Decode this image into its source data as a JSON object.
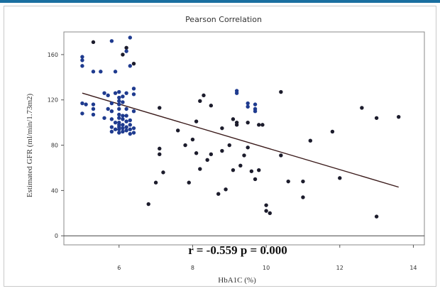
{
  "chart_data": {
    "type": "scatter",
    "title": "Pearson Correlation",
    "xlabel": "HbA1C (%)",
    "ylabel": "Estimated GFR (ml/min/1.73m2)",
    "xlim": [
      4.5,
      14.3
    ],
    "ylim": [
      -8,
      180
    ],
    "xticks": [
      6,
      8,
      10,
      12,
      14
    ],
    "yticks": [
      0,
      40,
      80,
      120,
      160
    ],
    "grid": false,
    "annotation": "r = -0.559  p = 0.000",
    "trendline": {
      "x": [
        5,
        13.6
      ],
      "y": [
        126,
        43
      ]
    },
    "colors": {
      "blue": "#1f3b8f",
      "black": "#1c1c2c",
      "trendline": "#3a1a1a"
    },
    "points_blue": [
      [
        5.0,
        158
      ],
      [
        5.0,
        155
      ],
      [
        5.0,
        150
      ],
      [
        5.0,
        117
      ],
      [
        5.0,
        108
      ],
      [
        5.1,
        116
      ],
      [
        5.3,
        145
      ],
      [
        5.3,
        116
      ],
      [
        5.3,
        112
      ],
      [
        5.3,
        107
      ],
      [
        5.5,
        145
      ],
      [
        5.6,
        126
      ],
      [
        5.6,
        104
      ],
      [
        5.7,
        124
      ],
      [
        5.7,
        112
      ],
      [
        5.8,
        172
      ],
      [
        5.8,
        117
      ],
      [
        5.8,
        110
      ],
      [
        5.8,
        103
      ],
      [
        5.8,
        96
      ],
      [
        5.8,
        92
      ],
      [
        5.9,
        100
      ],
      [
        5.9,
        94
      ],
      [
        5.9,
        145
      ],
      [
        5.9,
        126
      ],
      [
        6.0,
        127
      ],
      [
        6.0,
        122
      ],
      [
        6.0,
        119
      ],
      [
        6.0,
        116
      ],
      [
        6.0,
        112
      ],
      [
        6.0,
        107
      ],
      [
        6.0,
        104
      ],
      [
        6.0,
        100
      ],
      [
        6.0,
        98
      ],
      [
        6.0,
        96
      ],
      [
        6.0,
        94
      ],
      [
        6.0,
        91
      ],
      [
        6.1,
        123
      ],
      [
        6.1,
        118
      ],
      [
        6.1,
        106
      ],
      [
        6.1,
        103
      ],
      [
        6.1,
        98
      ],
      [
        6.1,
        95
      ],
      [
        6.1,
        92
      ],
      [
        6.2,
        112
      ],
      [
        6.2,
        106
      ],
      [
        6.2,
        101
      ],
      [
        6.2,
        96
      ],
      [
        6.2,
        93
      ],
      [
        6.3,
        102
      ],
      [
        6.3,
        98
      ],
      [
        6.3,
        94
      ],
      [
        6.3,
        90
      ],
      [
        6.2,
        163
      ],
      [
        6.2,
        126
      ],
      [
        6.3,
        175
      ],
      [
        6.3,
        150
      ],
      [
        6.4,
        130
      ],
      [
        6.4,
        125
      ],
      [
        6.4,
        110
      ],
      [
        6.4,
        95
      ],
      [
        6.4,
        91
      ],
      [
        9.2,
        128
      ],
      [
        9.2,
        126
      ],
      [
        9.5,
        117
      ],
      [
        9.5,
        114
      ],
      [
        9.7,
        116
      ],
      [
        9.7,
        112
      ],
      [
        9.7,
        110
      ]
    ],
    "points_black": [
      [
        5.3,
        171
      ],
      [
        6.1,
        160
      ],
      [
        6.2,
        166
      ],
      [
        6.4,
        152
      ],
      [
        6.8,
        28
      ],
      [
        7.0,
        47
      ],
      [
        7.1,
        113
      ],
      [
        7.1,
        77
      ],
      [
        7.1,
        72
      ],
      [
        7.2,
        56
      ],
      [
        7.6,
        93
      ],
      [
        7.8,
        80
      ],
      [
        7.9,
        47
      ],
      [
        8.0,
        85
      ],
      [
        8.1,
        101
      ],
      [
        8.1,
        73
      ],
      [
        8.2,
        119
      ],
      [
        8.2,
        59
      ],
      [
        8.3,
        124
      ],
      [
        8.4,
        67
      ],
      [
        8.5,
        115
      ],
      [
        8.5,
        72
      ],
      [
        8.7,
        37
      ],
      [
        8.8,
        95
      ],
      [
        8.8,
        75
      ],
      [
        8.9,
        41
      ],
      [
        9.0,
        80
      ],
      [
        9.1,
        58
      ],
      [
        9.1,
        103
      ],
      [
        9.2,
        98
      ],
      [
        9.2,
        100
      ],
      [
        9.3,
        62
      ],
      [
        9.4,
        71
      ],
      [
        9.5,
        78
      ],
      [
        9.5,
        100
      ],
      [
        9.6,
        57
      ],
      [
        9.7,
        50
      ],
      [
        9.8,
        98
      ],
      [
        9.8,
        58
      ],
      [
        9.9,
        98
      ],
      [
        10.0,
        27
      ],
      [
        10.1,
        20
      ],
      [
        10.0,
        22
      ],
      [
        10.4,
        127
      ],
      [
        10.4,
        71
      ],
      [
        10.6,
        48
      ],
      [
        11.0,
        48
      ],
      [
        11.0,
        34
      ],
      [
        11.2,
        84
      ],
      [
        11.8,
        92
      ],
      [
        12.0,
        51
      ],
      [
        12.6,
        113
      ],
      [
        13.0,
        104
      ],
      [
        13.0,
        17
      ],
      [
        13.6,
        105
      ]
    ]
  }
}
